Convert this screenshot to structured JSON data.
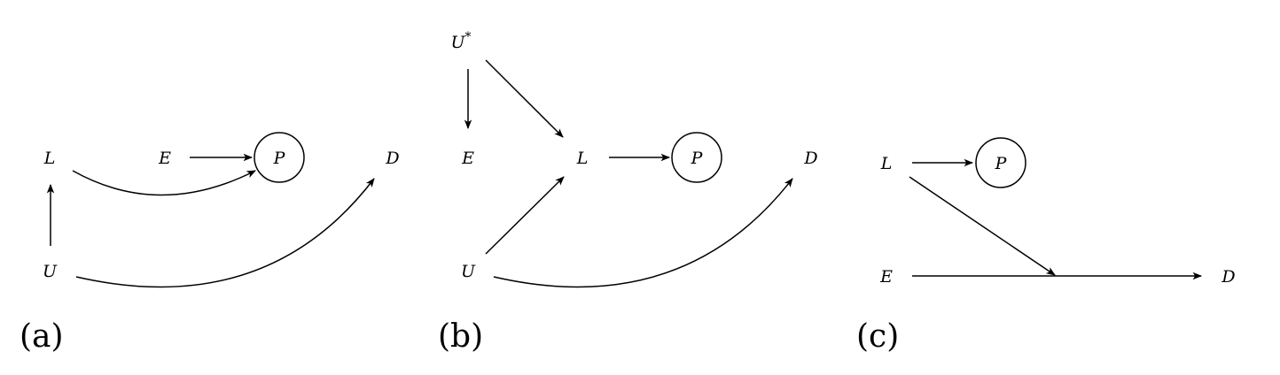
{
  "panels": {
    "a": {
      "label": "(a)",
      "nodes": {
        "L": "L",
        "E": "E",
        "P": "P",
        "D": "D",
        "U": "U"
      }
    },
    "b": {
      "label": "(b)",
      "nodes": {
        "Ustar": "U",
        "Ustar_sup": "*",
        "E": "E",
        "L": "L",
        "P": "P",
        "D": "D",
        "U": "U"
      }
    },
    "c": {
      "label": "(c)",
      "nodes": {
        "L": "L",
        "P": "P",
        "E": "E",
        "D": "D"
      }
    }
  },
  "edges": {
    "a": [
      "E→P",
      "L→P",
      "U→L",
      "U→D"
    ],
    "b": [
      "U*→E",
      "U*→L",
      "L→P",
      "U→L",
      "U→D"
    ],
    "c": [
      "L→P",
      "L→(E→D)",
      "E→D"
    ]
  }
}
